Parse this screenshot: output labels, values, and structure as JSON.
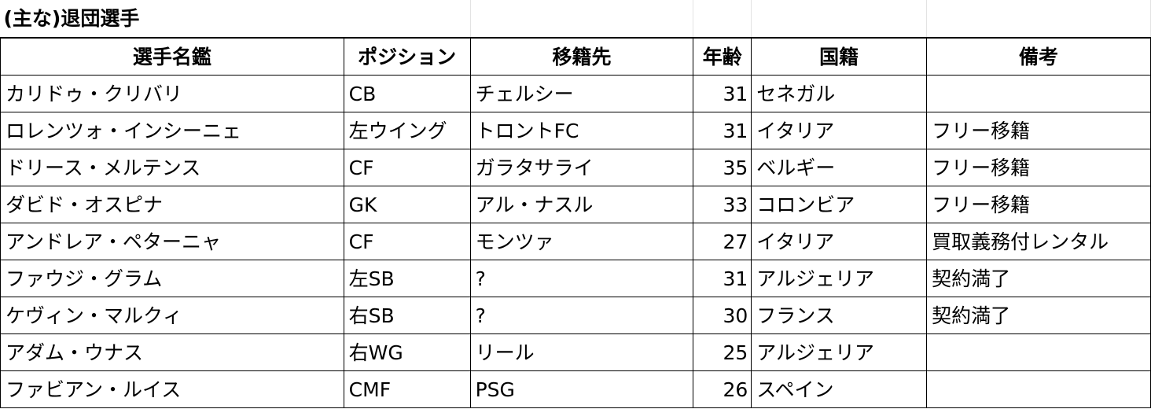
{
  "sheet": {
    "title": "(主な)退団選手",
    "columns": [
      "選手名鑑",
      "ポジション",
      "移籍先",
      "年齢",
      "国籍",
      "備考"
    ],
    "rows": [
      {
        "name": "カリドゥ・クリバリ",
        "position": "CB",
        "destination": "チェルシー",
        "age": 31,
        "nationality": "セネガル",
        "note": ""
      },
      {
        "name": "ロレンツォ・インシーニェ",
        "position": "左ウイング",
        "destination": "トロントFC",
        "age": 31,
        "nationality": "イタリア",
        "note": "フリー移籍"
      },
      {
        "name": "ドリース・メルテンス",
        "position": "CF",
        "destination": "ガラタサライ",
        "age": 35,
        "nationality": "ベルギー",
        "note": "フリー移籍"
      },
      {
        "name": "ダビド・オスピナ",
        "position": "GK",
        "destination": "アル・ナスル",
        "age": 33,
        "nationality": "コロンビア",
        "note": "フリー移籍"
      },
      {
        "name": "アンドレア・ペターニャ",
        "position": "CF",
        "destination": "モンツァ",
        "age": 27,
        "nationality": "イタリア",
        "note": "買取義務付レンタル"
      },
      {
        "name": "ファウジ・グラム",
        "position": "左SB",
        "destination": "?",
        "age": 31,
        "nationality": "アルジェリア",
        "note": "契約満了"
      },
      {
        "name": "ケヴィン・マルクィ",
        "position": "右SB",
        "destination": "?",
        "age": 30,
        "nationality": "フランス",
        "note": "契約満了"
      },
      {
        "name": "アダム・ウナス",
        "position": "右WG",
        "destination": "リール",
        "age": 25,
        "nationality": "アルジェリア",
        "note": ""
      },
      {
        "name": "ファビアン・ルイス",
        "position": "CMF",
        "destination": "PSG",
        "age": 26,
        "nationality": "スペイン",
        "note": ""
      }
    ]
  }
}
